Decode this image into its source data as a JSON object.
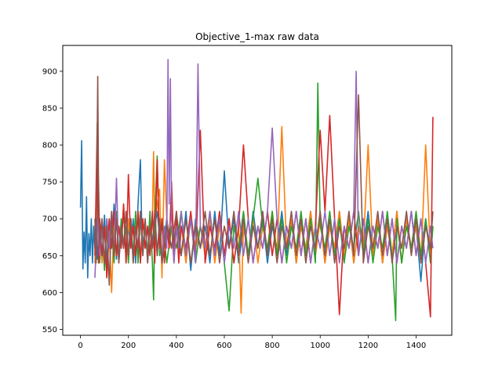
{
  "chart_data": {
    "type": "line",
    "title": "Objective_1-max raw data",
    "xlabel": "",
    "ylabel": "",
    "xlim": [
      -74,
      1549
    ],
    "ylim": [
      542,
      935
    ],
    "x_ticks": [
      0,
      200,
      400,
      600,
      800,
      1000,
      1200,
      1400
    ],
    "y_ticks": [
      550,
      600,
      650,
      700,
      750,
      800,
      850,
      900
    ],
    "grid": false,
    "legend": "none",
    "series": [
      {
        "color": "#1f77b4",
        "x": [
          0,
          5,
          10,
          15,
          20,
          25,
          30,
          35,
          40,
          45,
          50,
          55,
          60,
          65,
          70,
          80,
          90,
          100,
          110,
          120,
          130,
          140,
          150,
          160,
          170,
          180,
          190,
          200,
          210,
          220,
          230,
          240,
          250,
          255,
          260,
          270,
          280,
          290,
          300,
          320,
          340,
          360,
          380,
          400,
          420,
          440,
          460,
          480,
          500,
          520,
          540,
          560,
          580,
          600,
          620,
          640,
          660,
          680,
          700,
          720,
          740,
          760,
          780,
          800,
          820,
          840,
          860,
          880,
          900,
          920,
          940,
          960,
          980,
          1000,
          1020,
          1040,
          1060,
          1080,
          1100,
          1120,
          1140,
          1160,
          1180,
          1200,
          1220,
          1240,
          1260,
          1280,
          1300,
          1320,
          1340,
          1360,
          1380,
          1400,
          1420,
          1440,
          1460,
          1470
        ],
        "values": [
          715,
          806,
          632,
          682,
          640,
          730,
          620,
          680,
          650,
          700,
          640,
          690,
          660,
          710,
          645,
          690,
          650,
          705,
          640,
          700,
          660,
          720,
          645,
          690,
          670,
          710,
          650,
          690,
          660,
          700,
          640,
          720,
          780,
          700,
          660,
          690,
          650,
          700,
          670,
          710,
          640,
          700,
          660,
          690,
          650,
          710,
          630,
          700,
          660,
          690,
          640,
          710,
          650,
          765,
          660,
          700,
          640,
          690,
          650,
          710,
          660,
          700,
          640,
          690,
          660,
          710,
          650,
          700,
          640,
          690,
          660,
          710,
          650,
          700,
          640,
          690,
          660,
          710,
          650,
          700,
          640,
          690,
          660,
          710,
          650,
          700,
          640,
          690,
          650,
          710,
          640,
          700,
          660,
          690,
          615,
          700,
          650,
          690
        ]
      },
      {
        "color": "#ff7f0e",
        "x": [
          60,
          70,
          75,
          80,
          90,
          100,
          110,
          120,
          130,
          140,
          150,
          160,
          170,
          180,
          190,
          200,
          210,
          220,
          230,
          240,
          250,
          260,
          270,
          280,
          290,
          300,
          305,
          310,
          320,
          330,
          340,
          350,
          360,
          370,
          380,
          390,
          400,
          410,
          420,
          440,
          460,
          480,
          500,
          520,
          540,
          560,
          580,
          600,
          620,
          640,
          660,
          670,
          680,
          700,
          720,
          740,
          760,
          780,
          800,
          820,
          840,
          860,
          880,
          900,
          920,
          940,
          960,
          980,
          1000,
          1020,
          1040,
          1060,
          1080,
          1100,
          1120,
          1140,
          1160,
          1180,
          1200,
          1220,
          1240,
          1260,
          1280,
          1300,
          1320,
          1340,
          1360,
          1380,
          1400,
          1420,
          1440,
          1460,
          1470
        ],
        "values": [
          640,
          760,
          650,
          700,
          640,
          690,
          620,
          680,
          600,
          700,
          650,
          690,
          660,
          720,
          640,
          700,
          660,
          690,
          650,
          710,
          640,
          700,
          660,
          690,
          650,
          700,
          791,
          690,
          720,
          740,
          620,
          780,
          700,
          660,
          690,
          640,
          710,
          650,
          690,
          640,
          700,
          660,
          690,
          650,
          700,
          640,
          690,
          650,
          700,
          640,
          690,
          572,
          690,
          650,
          700,
          640,
          690,
          660,
          710,
          650,
          825,
          660,
          700,
          640,
          690,
          660,
          710,
          650,
          700,
          640,
          690,
          660,
          710,
          650,
          700,
          640,
          690,
          660,
          800,
          650,
          700,
          640,
          690,
          650,
          710,
          640,
          700,
          660,
          690,
          640,
          800,
          650,
          690
        ]
      },
      {
        "color": "#2ca02c",
        "x": [
          60,
          70,
          80,
          90,
          100,
          110,
          120,
          130,
          140,
          150,
          160,
          170,
          180,
          190,
          200,
          210,
          220,
          230,
          240,
          250,
          260,
          270,
          280,
          290,
          300,
          305,
          310,
          320,
          330,
          340,
          360,
          380,
          400,
          420,
          440,
          460,
          480,
          500,
          520,
          540,
          560,
          580,
          600,
          620,
          640,
          660,
          680,
          700,
          720,
          740,
          760,
          780,
          800,
          820,
          840,
          860,
          880,
          900,
          920,
          940,
          960,
          980,
          990,
          1000,
          1020,
          1040,
          1060,
          1080,
          1100,
          1120,
          1140,
          1160,
          1180,
          1200,
          1220,
          1240,
          1260,
          1280,
          1300,
          1315,
          1320,
          1340,
          1360,
          1380,
          1400,
          1420,
          1440,
          1460,
          1470
        ],
        "values": [
          650,
          700,
          640,
          690,
          630,
          700,
          660,
          690,
          640,
          710,
          650,
          700,
          660,
          690,
          640,
          700,
          650,
          710,
          640,
          700,
          660,
          690,
          650,
          710,
          640,
          590,
          700,
          785,
          650,
          700,
          640,
          690,
          660,
          710,
          650,
          700,
          640,
          690,
          660,
          710,
          650,
          700,
          640,
          575,
          690,
          660,
          710,
          650,
          700,
          755,
          690,
          660,
          710,
          650,
          700,
          640,
          690,
          660,
          710,
          650,
          700,
          640,
          884,
          690,
          660,
          710,
          650,
          700,
          640,
          690,
          660,
          710,
          650,
          700,
          640,
          690,
          660,
          710,
          650,
          562,
          700,
          640,
          690,
          660,
          710,
          650,
          700,
          640,
          690
        ]
      },
      {
        "color": "#d62728",
        "x": [
          60,
          70,
          75,
          80,
          90,
          100,
          110,
          120,
          130,
          140,
          150,
          160,
          170,
          180,
          190,
          200,
          210,
          220,
          230,
          240,
          250,
          260,
          270,
          280,
          290,
          300,
          310,
          320,
          330,
          340,
          350,
          360,
          370,
          380,
          390,
          400,
          410,
          420,
          440,
          460,
          480,
          500,
          520,
          540,
          560,
          580,
          600,
          620,
          640,
          660,
          680,
          700,
          720,
          740,
          760,
          780,
          800,
          820,
          840,
          860,
          880,
          900,
          920,
          940,
          960,
          980,
          1000,
          1020,
          1040,
          1060,
          1080,
          1100,
          1120,
          1140,
          1160,
          1180,
          1200,
          1220,
          1240,
          1260,
          1280,
          1300,
          1320,
          1340,
          1360,
          1380,
          1400,
          1420,
          1440,
          1460,
          1470
        ],
        "values": [
          650,
          830,
          640,
          700,
          650,
          690,
          620,
          700,
          660,
          710,
          650,
          690,
          660,
          720,
          640,
          760,
          660,
          690,
          650,
          710,
          640,
          700,
          660,
          690,
          650,
          710,
          640,
          780,
          660,
          700,
          640,
          690,
          660,
          750,
          650,
          700,
          640,
          690,
          660,
          710,
          650,
          820,
          640,
          690,
          660,
          710,
          650,
          700,
          640,
          690,
          800,
          700,
          640,
          690,
          660,
          710,
          650,
          700,
          640,
          690,
          660,
          710,
          650,
          700,
          640,
          690,
          820,
          710,
          840,
          700,
          570,
          690,
          660,
          710,
          650,
          700,
          640,
          690,
          660,
          710,
          650,
          700,
          640,
          690,
          660,
          710,
          650,
          700,
          640,
          567,
          838
        ]
      },
      {
        "color": "#9467bd",
        "x": [
          60,
          70,
          80,
          90,
          100,
          110,
          120,
          130,
          140,
          150,
          160,
          170,
          180,
          190,
          200,
          210,
          220,
          230,
          240,
          250,
          260,
          270,
          280,
          290,
          300,
          310,
          320,
          330,
          340,
          350,
          360,
          365,
          370,
          375,
          380,
          390,
          400,
          410,
          420,
          440,
          460,
          480,
          490,
          500,
          520,
          540,
          560,
          580,
          600,
          620,
          640,
          660,
          680,
          700,
          720,
          740,
          760,
          780,
          800,
          820,
          840,
          860,
          880,
          900,
          920,
          940,
          960,
          980,
          1000,
          1020,
          1040,
          1060,
          1080,
          1100,
          1120,
          1140,
          1150,
          1160,
          1180,
          1200,
          1220,
          1240,
          1260,
          1280,
          1300,
          1320,
          1340,
          1360,
          1380,
          1400,
          1420,
          1440,
          1460,
          1470
        ],
        "values": [
          620,
          700,
          650,
          690,
          640,
          700,
          660,
          710,
          650,
          755,
          640,
          690,
          660,
          710,
          650,
          700,
          640,
          690,
          660,
          710,
          650,
          700,
          640,
          690,
          660,
          710,
          650,
          700,
          640,
          690,
          660,
          916,
          720,
          890,
          700,
          640,
          690,
          660,
          710,
          650,
          700,
          640,
          910,
          690,
          660,
          710,
          650,
          700,
          640,
          690,
          660,
          710,
          650,
          700,
          640,
          690,
          660,
          710,
          823,
          700,
          640,
          690,
          660,
          710,
          650,
          700,
          640,
          690,
          660,
          710,
          650,
          700,
          640,
          690,
          660,
          710,
          900,
          650,
          700,
          640,
          690,
          660,
          710,
          650,
          700,
          640,
          690,
          660,
          710,
          650,
          700,
          640,
          690,
          660
        ]
      },
      {
        "color": "#8c564b",
        "x": [
          60,
          65,
          70,
          72,
          75,
          80,
          90,
          100,
          110,
          120,
          130,
          140,
          150,
          160,
          170,
          180,
          190,
          200,
          210,
          220,
          230,
          240,
          250,
          260,
          270,
          280,
          290,
          300,
          310,
          320,
          330,
          340,
          360,
          380,
          400,
          420,
          440,
          460,
          480,
          500,
          520,
          540,
          560,
          580,
          600,
          620,
          640,
          660,
          680,
          700,
          720,
          740,
          760,
          780,
          800,
          820,
          840,
          860,
          880,
          900,
          920,
          940,
          960,
          980,
          1000,
          1020,
          1040,
          1060,
          1080,
          1100,
          1120,
          1140,
          1160,
          1180,
          1200,
          1220,
          1240,
          1260,
          1280,
          1300,
          1320,
          1340,
          1360,
          1380,
          1400,
          1420,
          1440,
          1460,
          1470
        ],
        "values": [
          700,
          640,
          823,
          893,
          760,
          660,
          700,
          640,
          690,
          610,
          710,
          650,
          700,
          640,
          690,
          660,
          710,
          650,
          700,
          640,
          690,
          660,
          710,
          650,
          700,
          640,
          690,
          660,
          710,
          650,
          700,
          640,
          690,
          660,
          710,
          650,
          700,
          640,
          690,
          660,
          710,
          650,
          700,
          640,
          690,
          660,
          710,
          650,
          700,
          640,
          690,
          660,
          710,
          650,
          700,
          640,
          690,
          660,
          710,
          650,
          700,
          640,
          690,
          660,
          710,
          650,
          700,
          640,
          690,
          660,
          710,
          650,
          868,
          640,
          690,
          660,
          710,
          650,
          700,
          640,
          690,
          660,
          710,
          650,
          700,
          640,
          690,
          660,
          710
        ]
      }
    ]
  }
}
